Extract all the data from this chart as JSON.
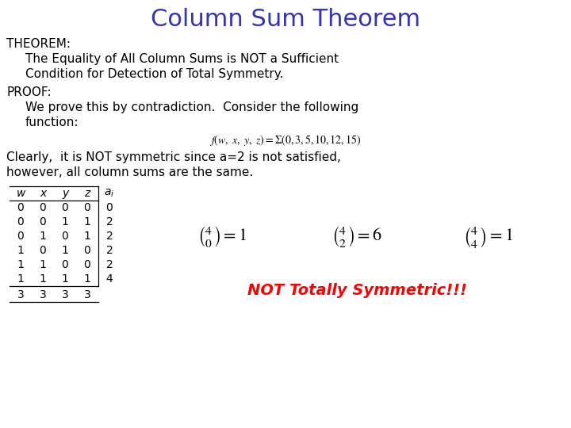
{
  "title": "Column Sum Theorem",
  "title_color": "#3333BB",
  "title_fontsize": 22,
  "bg_color": "#FFFFFF",
  "theorem_label": "THEOREM:",
  "theorem_text1": "The Equality of All Column Sums is NOT a Sufficient",
  "theorem_text2": "Condition for Detection of Total Symmetry.",
  "proof_label": "PROOF:",
  "proof_text1": "We prove this by contradiction.  Consider the following",
  "proof_text2": "function:",
  "clearly_text1": "Clearly,  it is NOT symmetric since a=2 is not satisfied,",
  "clearly_text2": "however, all column sums are the same.",
  "not_symmetric": "NOT Totally Symmetric!!!",
  "not_symmetric_color": "#FF0000",
  "table_headers": [
    "w",
    "x",
    "y",
    "z",
    "a_i"
  ],
  "table_data": [
    [
      0,
      0,
      0,
      0,
      0
    ],
    [
      0,
      0,
      1,
      1,
      2
    ],
    [
      0,
      1,
      0,
      1,
      2
    ],
    [
      1,
      0,
      1,
      0,
      2
    ],
    [
      1,
      1,
      0,
      0,
      2
    ],
    [
      1,
      1,
      1,
      1,
      4
    ]
  ],
  "table_sums": [
    3,
    3,
    3,
    3
  ],
  "body_fontsize": 11,
  "table_fontsize": 10,
  "formula_fontsize": 10,
  "binom_fontsize": 16,
  "not_sym_fontsize": 14
}
